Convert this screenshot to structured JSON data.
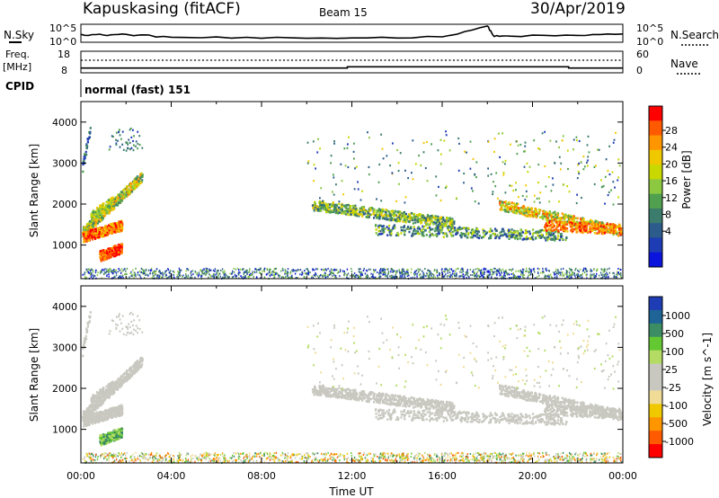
{
  "header": {
    "station": "Kapuskasing (fitACF)",
    "beam": "Beam 15",
    "date": "30/Apr/2019"
  },
  "strip": {
    "nsky_label": "N.Sky",
    "nsearch_label": "N.Search",
    "freq_label_1": "Freq.",
    "freq_label_2": "[MHz]",
    "nave_label": "Nave",
    "cpid_label": "CPID",
    "cpid_value": "normal (fast) 151",
    "nsky_ticks": [
      "10^5",
      "10^0"
    ],
    "nsearch_ticks": [
      "10^5",
      "10^0"
    ],
    "freq_ticks": [
      "18",
      "8"
    ],
    "nave_ticks": [
      "60",
      "0"
    ]
  },
  "colorbars": {
    "power": {
      "label": "Power [dB]",
      "ticks": [
        "28",
        "24",
        "20",
        "16",
        "12",
        "8",
        "4"
      ],
      "colors": [
        "#ff0000",
        "#ff5a00",
        "#ff9600",
        "#f0c800",
        "#c8d800",
        "#8cc840",
        "#50a050",
        "#3c7c6c",
        "#2c5c8c",
        "#1e3cb4",
        "#0a14dc"
      ]
    },
    "velocity": {
      "label": "Velocity [m s^-1]",
      "ticks": [
        "1000",
        "500",
        "100",
        "25",
        "-25",
        "-100",
        "-500",
        "-1000"
      ],
      "colors": [
        "#1e3cb4",
        "#1e6496",
        "#3c8c64",
        "#64c832",
        "#b4dc64",
        "#c8c8c0",
        "#c8c8c0",
        "#f0dc96",
        "#f0c800",
        "#ff9600",
        "#ff5a00",
        "#ff0000"
      ]
    }
  },
  "chart_data": [
    {
      "type": "line",
      "title": "N.Sky / N.Search",
      "x_range_hours": [
        0,
        24
      ],
      "ylim": [
        "10^0",
        "10^5"
      ],
      "series": [
        {
          "name": "N.Sky",
          "x": [
            0,
            1,
            2,
            4,
            8,
            12,
            16,
            18,
            18.3,
            19,
            22,
            24
          ],
          "log10_values": [
            2.2,
            2.0,
            2.2,
            1.4,
            1.1,
            1.2,
            1.5,
            4.5,
            1.6,
            1.7,
            1.9,
            2.3
          ]
        }
      ]
    },
    {
      "type": "line",
      "title": "Freq. [MHz] / Nave",
      "ylim": [
        8,
        18
      ],
      "series": [
        {
          "name": "Freq.",
          "x": [
            0,
            11.8,
            11.8,
            21.6,
            21.6,
            24
          ],
          "values": [
            10.2,
            10.2,
            10.8,
            10.8,
            10.2,
            10.2
          ]
        }
      ]
    },
    {
      "type": "heatmap",
      "ylabel": "Slant Range [km]",
      "colorbar_label": "Power [dB]",
      "ylim": [
        180,
        4500
      ],
      "yticks": [
        1000,
        2000,
        3000,
        4000
      ],
      "clim": [
        0,
        30
      ]
    },
    {
      "type": "heatmap",
      "ylabel": "Slant Range [km]",
      "xlabel": "Time UT",
      "xticks": [
        "00:00",
        "04:00",
        "08:00",
        "12:00",
        "16:00",
        "20:00",
        "00:00"
      ],
      "colorbar_label": "Velocity [m s^-1]",
      "ylim": [
        180,
        4500
      ],
      "yticks": [
        1000,
        2000,
        3000,
        4000
      ],
      "clim": [
        -1000,
        1000
      ]
    }
  ]
}
